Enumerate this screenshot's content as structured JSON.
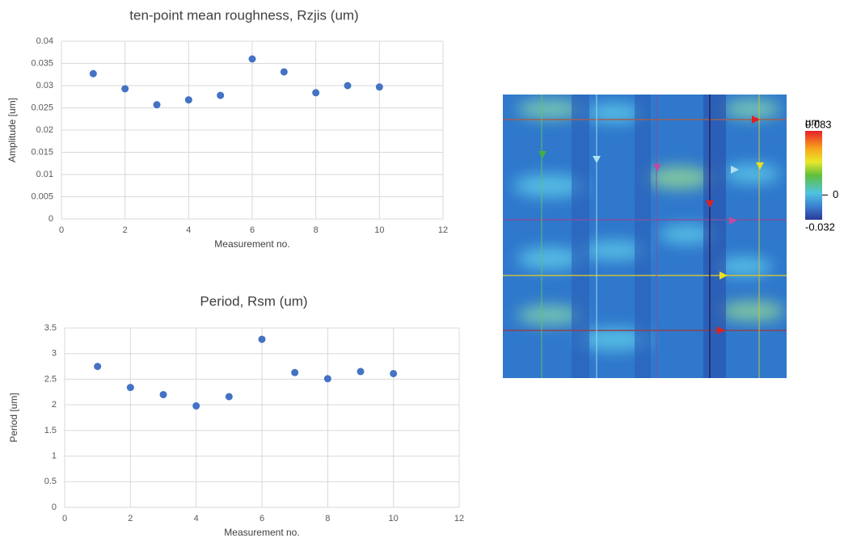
{
  "chart_data": [
    {
      "type": "scatter",
      "title": "ten-point mean roughness, Rzjis (um)",
      "x_label": "Measurement no.",
      "y_label": "Amplitude [um]",
      "x": [
        1,
        2,
        3,
        4,
        5,
        6,
        7,
        8,
        9,
        10
      ],
      "values": [
        0.0327,
        0.0293,
        0.0257,
        0.0268,
        0.0278,
        0.036,
        0.0331,
        0.0284,
        0.03,
        0.0297
      ],
      "color": "#4472c4",
      "xlim": [
        0,
        12
      ],
      "xticks": [
        0,
        2,
        4,
        6,
        8,
        10,
        12
      ],
      "ylim": [
        0,
        0.04
      ],
      "yticks": [
        0,
        0.005,
        0.01,
        0.015,
        0.02,
        0.025,
        0.03,
        0.035,
        0.04
      ],
      "grid": true
    },
    {
      "type": "scatter",
      "title": "Period, Rsm (um)",
      "x_label": "Measurement no.",
      "y_label": "Period [um]",
      "x": [
        1,
        2,
        3,
        4,
        5,
        6,
        7,
        8,
        9,
        10
      ],
      "values": [
        2.75,
        2.34,
        2.2,
        1.98,
        2.16,
        3.28,
        2.63,
        2.51,
        2.65,
        2.61
      ],
      "color": "#4472c4",
      "xlim": [
        0,
        12
      ],
      "xticks": [
        0,
        2,
        4,
        6,
        8,
        10,
        12
      ],
      "ylim": [
        0,
        3.5
      ],
      "yticks": [
        0,
        0.5,
        1,
        1.5,
        2,
        2.5,
        3,
        3.5
      ],
      "grid": true
    }
  ],
  "heatmap": {
    "unit": "µm",
    "colorbar_lim": [
      -0.032,
      0.083
    ],
    "colorbar_ticks": [
      0.083,
      0,
      -0.032
    ]
  }
}
